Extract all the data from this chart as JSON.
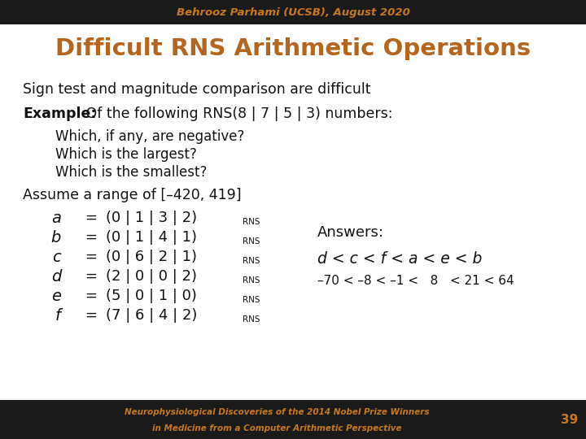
{
  "bg_color": "#ffffff",
  "header_bg": "#1a1a1a",
  "footer_bg": "#1a1a1a",
  "header_text": "Behrooz Parhami (UCSB), August 2020",
  "header_color": "#c8781e",
  "title": "Difficult RNS Arithmetic Operations",
  "title_color": "#b5651d",
  "footer_line1": "Neurophysiological Discoveries of the 2014 Nobel Prize Winners",
  "footer_line2": "in Medicine from a Computer Arithmetic Perspective",
  "footer_color": "#c8781e",
  "page_num": "39",
  "page_num_color": "#c8781e",
  "body_color": "#111111",
  "line1": "Sign test and magnitude comparison are difficult",
  "line2_bold": "Example:",
  "line2_rest": " Of the following RNS(8 | 7 | 5 | 3) numbers:",
  "bullets": [
    "Which, if any, are negative?",
    "Which is the largest?",
    "Which is the smallest?"
  ],
  "line3": "Assume a range of [–420, 419]",
  "vars": [
    "a",
    "b",
    "c",
    "d",
    "e",
    "f"
  ],
  "eqs": [
    "(0 | 1 | 3 | 2)",
    "(0 | 1 | 4 | 1)",
    "(0 | 6 | 2 | 1)",
    "(2 | 0 | 0 | 2)",
    "(5 | 0 | 1 | 0)",
    "(7 | 6 | 4 | 2)"
  ],
  "answers_label": "Answers:",
  "answer_order": "d < c < f < a < e < b",
  "answer_values": "–70 < –8 < –1 <   8   < 21 < 64"
}
